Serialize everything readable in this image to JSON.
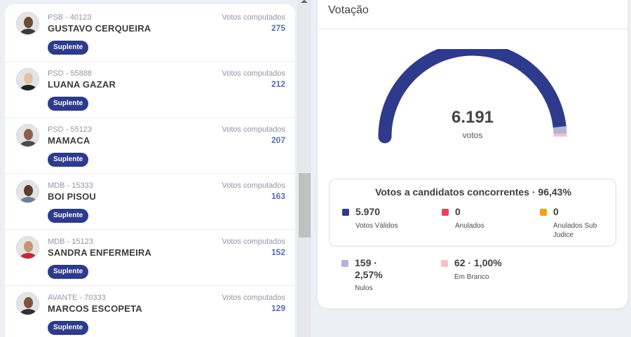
{
  "candidates": [
    {
      "party": "PSB - 40123",
      "name": "GUSTAVO CERQUEIRA",
      "votes_label": "Votos computados",
      "votes": "275",
      "status": "Suplente"
    },
    {
      "party": "PSD - 55888",
      "name": "LUANA GAZAR",
      "votes_label": "Votos computados",
      "votes": "212",
      "status": "Suplente"
    },
    {
      "party": "PSD - 55123",
      "name": "MAMACA",
      "votes_label": "Votos computados",
      "votes": "207",
      "status": "Suplente"
    },
    {
      "party": "MDB - 15333",
      "name": "BOI PISOU",
      "votes_label": "Votos computados",
      "votes": "163",
      "status": "Suplente"
    },
    {
      "party": "MDB - 15123",
      "name": "SANDRA ENFERMEIRA",
      "votes_label": "Votos computados",
      "votes": "152",
      "status": "Suplente"
    },
    {
      "party": "AVANTE - 70333",
      "name": "MARCOS ESCOPETA",
      "votes_label": "Votos computados",
      "votes": "129",
      "status": "Suplente"
    }
  ],
  "voting": {
    "title": "Votação",
    "total": "6.191",
    "total_label": "votos",
    "gauge_segments": [
      {
        "label": "Votos Válidos",
        "fraction": 0.9643,
        "color": "#2e3a8c"
      },
      {
        "label": "Nulos",
        "fraction": 0.0257,
        "color": "#b5b3d6"
      },
      {
        "label": "Em Branco",
        "fraction": 0.01,
        "color": "#f6c1c8"
      }
    ],
    "concurrent_title": "Votos a candidatos concorrentes · 96,43%",
    "concurrent": [
      {
        "value": "5.970",
        "label": "Votos Válidos",
        "color": "#2e3a8c"
      },
      {
        "value": "0",
        "label": "Anulados",
        "color": "#e8435a"
      },
      {
        "value": "0",
        "label": "Anulados Sub Judice",
        "color": "#f0a30a"
      }
    ],
    "others": [
      {
        "value": "159 · 2,57%",
        "label": "Nulos",
        "color": "#b5b3d6"
      },
      {
        "value": "62 · 1,00%",
        "label": "Em Branco",
        "color": "#f6c1c8"
      }
    ]
  }
}
